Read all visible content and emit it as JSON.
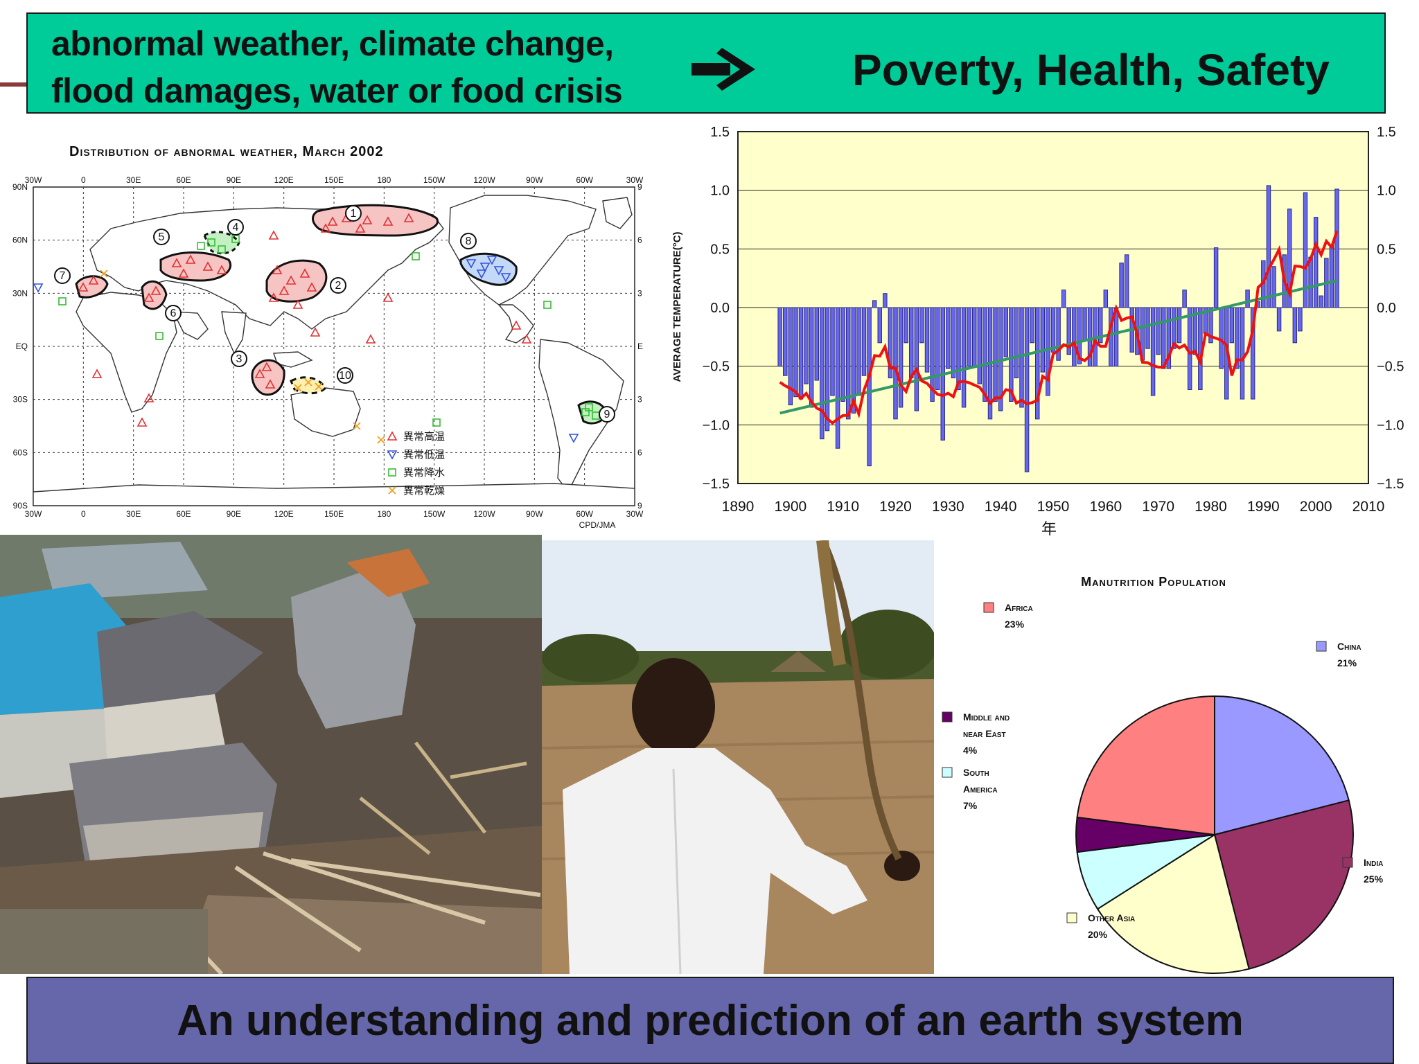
{
  "banner": {
    "cause_line_1": "abnormal weather, climate change,",
    "cause_line_2": "flood damages, water or  food crisis",
    "effect": "Poverty, Health, Safety",
    "background_color": "#00cc99"
  },
  "weather_map": {
    "title": "Distribution of abnormal weather, March 2002",
    "credit": "CPD/JMA",
    "top_longitudes": [
      "30W",
      "0",
      "30E",
      "60E",
      "90E",
      "120E",
      "150E",
      "180",
      "150W",
      "120W",
      "90W",
      "60W",
      "30W"
    ],
    "bottom_longitudes": [
      "30W",
      "0",
      "30E",
      "60E",
      "90E",
      "120E",
      "150E",
      "180",
      "150W",
      "120W",
      "90W",
      "60W",
      "30W"
    ],
    "latitudes": [
      "90N",
      "60N",
      "30N",
      "EQ",
      "30S",
      "60S",
      "90S"
    ],
    "right_ticks": [
      "9",
      "6",
      "3",
      "E",
      "3",
      "6",
      "9"
    ],
    "region_numbers": [
      "1",
      "2",
      "3",
      "4",
      "5",
      "6",
      "7",
      "8",
      "9",
      "10"
    ],
    "legend": [
      {
        "symbol": "triangle-up",
        "color": "#e03030",
        "label": "異常高温"
      },
      {
        "symbol": "triangle-down",
        "color": "#3050e0",
        "label": "異常低温"
      },
      {
        "symbol": "square",
        "color": "#30c030",
        "label": "異常降水"
      },
      {
        "symbol": "cross",
        "color": "#f0a020",
        "label": "異常乾燥"
      }
    ]
  },
  "chart_data": [
    {
      "type": "bar",
      "title": "",
      "xlabel": "年",
      "ylabel": "AVERAGE TEMPERATURE(°C)",
      "xlim": [
        1890,
        2010
      ],
      "ylim": [
        -1.5,
        1.5
      ],
      "x_ticks": [
        "1890",
        "1900",
        "1910",
        "1920",
        "1930",
        "1940",
        "1950",
        "1960",
        "1970",
        "1980",
        "1990",
        "2000",
        "2010"
      ],
      "y_ticks": [
        "1.5",
        "1.0",
        "0.5",
        "0.0",
        "−0.5",
        "−1.0",
        "−1.5"
      ],
      "background": "#ffffcc",
      "bar_color": "#6666ee",
      "x": [
        1898,
        1899,
        1900,
        1901,
        1902,
        1903,
        1904,
        1905,
        1906,
        1907,
        1908,
        1909,
        1910,
        1911,
        1912,
        1913,
        1914,
        1915,
        1916,
        1917,
        1918,
        1919,
        1920,
        1921,
        1922,
        1923,
        1924,
        1925,
        1926,
        1927,
        1928,
        1929,
        1930,
        1931,
        1932,
        1933,
        1934,
        1935,
        1936,
        1937,
        1938,
        1939,
        1940,
        1941,
        1942,
        1943,
        1944,
        1945,
        1946,
        1947,
        1948,
        1949,
        1950,
        1951,
        1952,
        1953,
        1954,
        1955,
        1956,
        1957,
        1958,
        1959,
        1960,
        1961,
        1962,
        1963,
        1964,
        1965,
        1966,
        1967,
        1968,
        1969,
        1970,
        1971,
        1972,
        1973,
        1974,
        1975,
        1976,
        1977,
        1978,
        1979,
        1980,
        1981,
        1982,
        1983,
        1984,
        1985,
        1986,
        1987,
        1988,
        1989,
        1990,
        1991,
        1992,
        1993,
        1994,
        1995,
        1996,
        1997,
        1998,
        1999,
        2000,
        2001,
        2002,
        2003,
        2004
      ],
      "series": [
        {
          "values": [
            -0.5,
            -0.58,
            -0.83,
            -0.76,
            -0.78,
            -0.65,
            -0.85,
            -0.62,
            -1.12,
            -1.05,
            -0.75,
            -1.2,
            -0.8,
            -0.95,
            -0.9,
            -0.75,
            -0.58,
            -1.35,
            0.06,
            -0.3,
            0.12,
            -0.6,
            -0.95,
            -0.85,
            -0.3,
            -0.6,
            -0.88,
            -0.3,
            -0.55,
            -0.8,
            -0.7,
            -1.13,
            -0.52,
            -0.6,
            -0.7,
            -0.85,
            -0.5,
            -0.5,
            -0.65,
            -0.8,
            -0.95,
            -0.8,
            -0.88,
            -0.42,
            -0.8,
            -0.6,
            -0.85,
            -1.4,
            -0.3,
            -0.95,
            -0.55,
            -0.75,
            -0.38,
            -0.45,
            0.15,
            -0.4,
            -0.5,
            -0.48,
            -0.28,
            -0.5,
            -0.5,
            -0.3,
            0.15,
            -0.5,
            -0.5,
            0.38,
            0.45,
            -0.38,
            -0.4,
            -0.45,
            -0.35,
            -0.75,
            -0.4,
            -0.52,
            -0.52,
            -0.35,
            -0.3,
            0.15,
            -0.7,
            -0.4,
            -0.7,
            -0.22,
            -0.3,
            0.51,
            -0.52,
            -0.78,
            -0.3,
            -0.52,
            -0.78,
            0.15,
            -0.78,
            0.05,
            0.4,
            1.04,
            0.35,
            -0.2,
            0.45,
            0.84,
            -0.3,
            -0.2,
            0.98,
            0.43,
            0.77,
            0.1,
            0.42,
            0.53,
            1.01
          ]
        }
      ],
      "smoothed_line_color": "#ee1111",
      "trend_line": {
        "from": [
          1898,
          -0.9
        ],
        "to": [
          2004,
          0.23
        ],
        "color": "#339966"
      }
    },
    {
      "type": "pie",
      "title": "Manutrition Population",
      "slices": [
        {
          "label": "China",
          "value": 21,
          "text": "21%",
          "color": "#9999ff"
        },
        {
          "label": "India",
          "value": 25,
          "text": "25%",
          "color": "#993366"
        },
        {
          "label": "Other Asia",
          "value": 20,
          "text": "20%",
          "color": "#ffffcc"
        },
        {
          "label": "South America",
          "value": 7,
          "text": "7%",
          "color": "#ccffff"
        },
        {
          "label": "Middle and near East",
          "value": 4,
          "text": "4%",
          "color": "#660066"
        },
        {
          "label": "Africa",
          "value": 23,
          "text": "23%",
          "color": "#ff8080"
        }
      ]
    }
  ],
  "footer": {
    "text": "An understanding and prediction of an earth system",
    "background_color": "#6666aa"
  }
}
